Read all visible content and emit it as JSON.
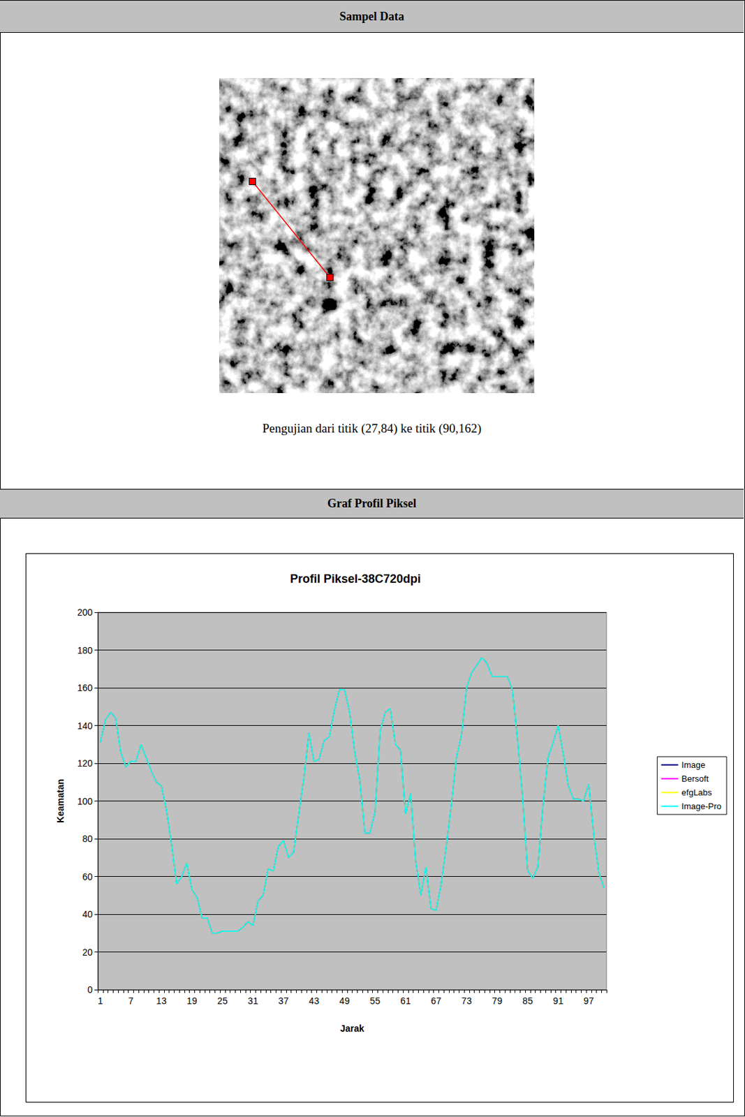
{
  "sections": [
    {
      "title": "Sampel Data",
      "caption": "Pengujian dari titik (27,84) ke titik (90,162)",
      "line": {
        "from": [
          27,
          84
        ],
        "to": [
          90,
          162
        ]
      }
    },
    {
      "title": "Graf Profil Piksel"
    }
  ],
  "chart_data": {
    "type": "line",
    "title": "Profil Piksel-38C720dpi",
    "x_label": "Jarak",
    "y_label": "Keamatan",
    "categories": [
      1,
      null,
      null,
      null,
      null,
      null,
      7,
      null,
      null,
      null,
      null,
      null,
      13,
      null,
      null,
      null,
      null,
      null,
      19,
      null,
      null,
      null,
      null,
      null,
      25,
      null,
      null,
      null,
      null,
      null,
      31,
      null,
      null,
      null,
      null,
      null,
      37,
      null,
      null,
      null,
      null,
      null,
      43,
      null,
      null,
      null,
      null,
      null,
      49,
      null,
      null,
      null,
      null,
      null,
      55,
      null,
      null,
      null,
      null,
      null,
      61,
      null,
      null,
      null,
      null,
      null,
      67,
      null,
      null,
      null,
      null,
      null,
      73,
      null,
      null,
      null,
      null,
      null,
      79,
      null,
      null,
      null,
      null,
      null,
      85,
      null,
      null,
      null,
      null,
      null,
      91,
      null,
      null,
      null,
      null,
      null,
      97,
      null,
      null,
      null
    ],
    "series": [
      {
        "name": "Image",
        "color": "#000080",
        "values": [
          131,
          143,
          147,
          144,
          126,
          118,
          121,
          121,
          130,
          123,
          116,
          110,
          108,
          95,
          77,
          56,
          60,
          67,
          53,
          49,
          38,
          38,
          30,
          30,
          31,
          31,
          31,
          31,
          33,
          36,
          34,
          47,
          50,
          64,
          63,
          76,
          79,
          70,
          73,
          93,
          112,
          136,
          121,
          122,
          132,
          134,
          148,
          159,
          159,
          147,
          126,
          111,
          83,
          83,
          94,
          137,
          147,
          149,
          130,
          127,
          93,
          104,
          68,
          50,
          65,
          43,
          42,
          56,
          76,
          98,
          123,
          135,
          160,
          168,
          172,
          176,
          173,
          166,
          166,
          166,
          166,
          159,
          133,
          102,
          63,
          59,
          65,
          97,
          123,
          131,
          140,
          125,
          108,
          101,
          101,
          100,
          109,
          82,
          62,
          54
        ]
      },
      {
        "name": "Bersoft",
        "color": "#ff00ff",
        "values": [
          131,
          143,
          147,
          144,
          126,
          118,
          121,
          121,
          130,
          123,
          116,
          110,
          108,
          95,
          77,
          56,
          60,
          67,
          53,
          49,
          38,
          38,
          30,
          30,
          31,
          31,
          31,
          31,
          33,
          36,
          34,
          47,
          50,
          64,
          63,
          76,
          79,
          70,
          73,
          93,
          112,
          136,
          121,
          122,
          132,
          134,
          148,
          159,
          159,
          147,
          126,
          111,
          83,
          83,
          94,
          137,
          147,
          149,
          130,
          127,
          93,
          104,
          68,
          50,
          65,
          43,
          42,
          56,
          76,
          98,
          123,
          135,
          160,
          168,
          172,
          176,
          173,
          166,
          166,
          166,
          166,
          159,
          133,
          102,
          63,
          59,
          65,
          97,
          123,
          131,
          140,
          125,
          108,
          101,
          101,
          100,
          109,
          82,
          62,
          54
        ]
      },
      {
        "name": "efgLabs",
        "color": "#ffff00",
        "values": [
          131,
          143,
          147,
          144,
          126,
          118,
          121,
          121,
          130,
          123,
          116,
          110,
          108,
          95,
          77,
          56,
          60,
          67,
          53,
          49,
          38,
          38,
          30,
          30,
          31,
          31,
          31,
          31,
          33,
          36,
          34,
          47,
          50,
          64,
          63,
          76,
          79,
          70,
          73,
          93,
          112,
          136,
          121,
          122,
          132,
          134,
          148,
          159,
          159,
          147,
          126,
          111,
          83,
          83,
          94,
          137,
          147,
          149,
          130,
          127,
          93,
          104,
          68,
          50,
          65,
          43,
          42,
          56,
          76,
          98,
          123,
          135,
          160,
          168,
          172,
          176,
          173,
          166,
          166,
          166,
          166,
          159,
          133,
          102,
          63,
          59,
          65,
          97,
          123,
          131,
          140,
          125,
          108,
          101,
          101,
          100,
          109,
          82,
          62,
          54
        ]
      },
      {
        "name": "Image-Pro",
        "color": "#00ffff",
        "values": [
          131,
          143,
          147,
          144,
          126,
          118,
          121,
          121,
          130,
          123,
          116,
          110,
          108,
          95,
          77,
          56,
          60,
          67,
          53,
          49,
          38,
          38,
          30,
          30,
          31,
          31,
          31,
          31,
          33,
          36,
          34,
          47,
          50,
          64,
          63,
          76,
          79,
          70,
          73,
          93,
          112,
          136,
          121,
          122,
          132,
          134,
          148,
          159,
          159,
          147,
          126,
          111,
          83,
          83,
          94,
          137,
          147,
          149,
          130,
          127,
          93,
          104,
          68,
          50,
          65,
          43,
          42,
          56,
          76,
          98,
          123,
          135,
          160,
          168,
          172,
          176,
          173,
          166,
          166,
          166,
          166,
          159,
          133,
          102,
          63,
          59,
          65,
          97,
          123,
          131,
          140,
          125,
          108,
          101,
          101,
          100,
          109,
          82,
          62,
          54
        ]
      }
    ],
    "ylim": [
      0,
      200
    ],
    "yticks": [
      0,
      20,
      40,
      60,
      80,
      100,
      120,
      140,
      160,
      180,
      200
    ],
    "grid": true,
    "legend": "right",
    "marker": "none"
  }
}
